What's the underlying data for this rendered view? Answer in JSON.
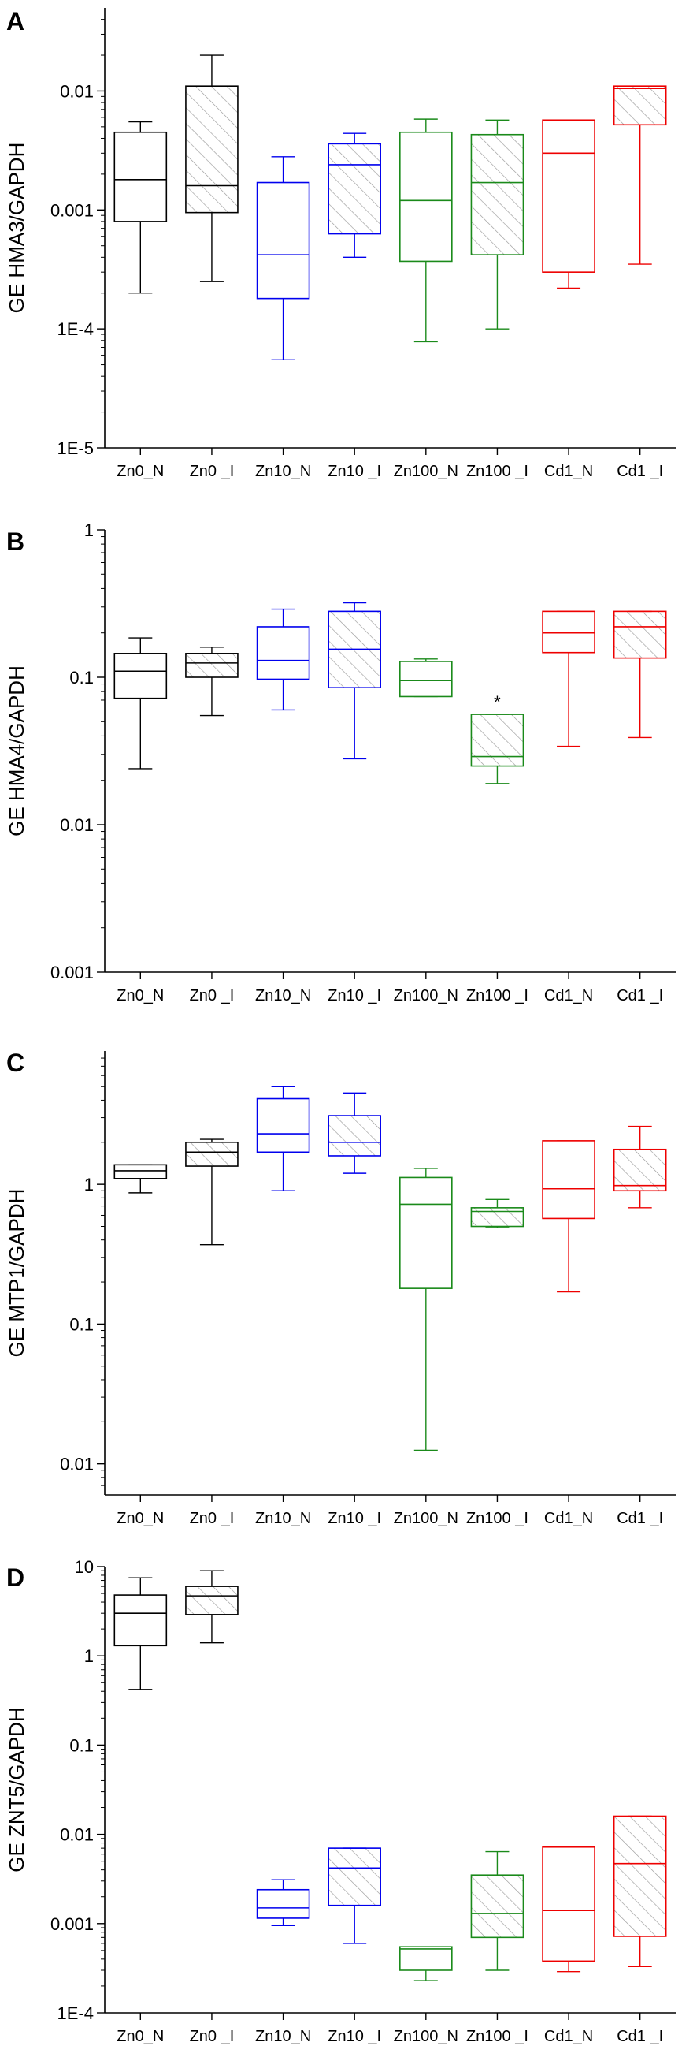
{
  "chart_data": [
    {
      "type": "box",
      "panel_label": "A",
      "ylabel": "GE HMA3/GAPDH",
      "yscale": "log",
      "ylim": [
        1e-05,
        0.05
      ],
      "yticks": [
        1e-05,
        0.0001,
        0.001,
        0.01
      ],
      "ytick_labels": [
        "1E-5",
        "1E-4",
        "0.001",
        "0.01"
      ],
      "categories": [
        "Zn0_N",
        "Zn0 _I",
        "Zn10_N",
        "Zn10 _I",
        "Zn100_N",
        "Zn100 _I",
        "Cd1_N",
        "Cd1 _I"
      ],
      "boxes": [
        {
          "min": 0.0002,
          "q1": 0.0008,
          "median": 0.0018,
          "q3": 0.0045,
          "max": 0.0055
        },
        {
          "min": 0.00025,
          "q1": 0.00095,
          "median": 0.0016,
          "q3": 0.011,
          "max": 0.02
        },
        {
          "min": 5.5e-05,
          "q1": 0.00018,
          "median": 0.00042,
          "q3": 0.0017,
          "max": 0.0028
        },
        {
          "min": 0.0004,
          "q1": 0.00063,
          "median": 0.0024,
          "q3": 0.0036,
          "max": 0.0044
        },
        {
          "min": 7.8e-05,
          "q1": 0.00037,
          "median": 0.0012,
          "q3": 0.0045,
          "max": 0.0058
        },
        {
          "min": 0.0001,
          "q1": 0.00042,
          "median": 0.0017,
          "q3": 0.0043,
          "max": 0.0057
        },
        {
          "min": 0.00022,
          "q1": 0.0003,
          "median": 0.003,
          "q3": 0.0057,
          "max": 0.0057
        },
        {
          "min": 0.00035,
          "q1": 0.0052,
          "median": 0.0105,
          "q3": 0.011,
          "max": 0.011
        }
      ],
      "annotations": []
    },
    {
      "type": "box",
      "panel_label": "B",
      "ylabel": "GE HMA4/GAPDH",
      "yscale": "log",
      "ylim": [
        0.001,
        1
      ],
      "yticks": [
        0.001,
        0.01,
        0.1,
        1
      ],
      "ytick_labels": [
        "0.001",
        "0.01",
        "0.1",
        "1"
      ],
      "categories": [
        "Zn0_N",
        "Zn0 _I",
        "Zn10_N",
        "Zn10 _I",
        "Zn100_N",
        "Zn100 _I",
        "Cd1_N",
        "Cd1 _I"
      ],
      "boxes": [
        {
          "min": 0.024,
          "q1": 0.072,
          "median": 0.11,
          "q3": 0.145,
          "max": 0.185
        },
        {
          "min": 0.055,
          "q1": 0.1,
          "median": 0.125,
          "q3": 0.145,
          "max": 0.16
        },
        {
          "min": 0.06,
          "q1": 0.097,
          "median": 0.13,
          "q3": 0.22,
          "max": 0.29
        },
        {
          "min": 0.028,
          "q1": 0.085,
          "median": 0.155,
          "q3": 0.28,
          "max": 0.32
        },
        {
          "min": 0.074,
          "q1": 0.074,
          "median": 0.095,
          "q3": 0.128,
          "max": 0.133
        },
        {
          "min": 0.019,
          "q1": 0.025,
          "median": 0.029,
          "q3": 0.056,
          "max": 0.056
        },
        {
          "min": 0.034,
          "q1": 0.147,
          "median": 0.2,
          "q3": 0.28,
          "max": 0.28
        },
        {
          "min": 0.039,
          "q1": 0.135,
          "median": 0.22,
          "q3": 0.28,
          "max": 0.28
        }
      ],
      "annotations": [
        {
          "category_index": 5,
          "text": "*",
          "y": 0.07
        }
      ]
    },
    {
      "type": "box",
      "panel_label": "C",
      "ylabel": "GE MTP1/GAPDH",
      "yscale": "log",
      "ylim": [
        0.006,
        9
      ],
      "yticks": [
        0.01,
        0.1,
        1
      ],
      "ytick_labels": [
        "0.01",
        "0.1",
        "1"
      ],
      "categories": [
        "Zn0_N",
        "Zn0 _I",
        "Zn10_N",
        "Zn10 _I",
        "Zn100_N",
        "Zn100 _I",
        "Cd1_N",
        "Cd1 _I"
      ],
      "boxes": [
        {
          "min": 0.87,
          "q1": 1.1,
          "median": 1.25,
          "q3": 1.38,
          "max": 1.38
        },
        {
          "min": 0.37,
          "q1": 1.35,
          "median": 1.7,
          "q3": 2.0,
          "max": 2.1
        },
        {
          "min": 0.9,
          "q1": 1.7,
          "median": 2.3,
          "q3": 4.1,
          "max": 5.0
        },
        {
          "min": 1.2,
          "q1": 1.6,
          "median": 2.0,
          "q3": 3.1,
          "max": 4.5
        },
        {
          "min": 0.0125,
          "q1": 0.18,
          "median": 0.72,
          "q3": 1.12,
          "max": 1.3
        },
        {
          "min": 0.49,
          "q1": 0.5,
          "median": 0.64,
          "q3": 0.68,
          "max": 0.78
        },
        {
          "min": 0.17,
          "q1": 0.57,
          "median": 0.93,
          "q3": 2.05,
          "max": 2.05
        },
        {
          "min": 0.68,
          "q1": 0.9,
          "median": 0.98,
          "q3": 1.78,
          "max": 2.6
        }
      ],
      "annotations": []
    },
    {
      "type": "box",
      "panel_label": "D",
      "ylabel": "GE ZNT5/GAPDH",
      "yscale": "log",
      "ylim": [
        0.0001,
        10
      ],
      "yticks": [
        0.0001,
        0.001,
        0.01,
        0.1,
        1,
        10
      ],
      "ytick_labels": [
        "1E-4",
        "0.001",
        "0.01",
        "0.1",
        "1",
        "10"
      ],
      "categories": [
        "Zn0_N",
        "Zn0 _I",
        "Zn10_N",
        "Zn10 _I",
        "Zn100_N",
        "Zn100 _I",
        "Cd1_N",
        "Cd1 _I"
      ],
      "boxes": [
        {
          "min": 0.42,
          "q1": 1.3,
          "median": 3.0,
          "q3": 4.8,
          "max": 7.5
        },
        {
          "min": 1.4,
          "q1": 2.9,
          "median": 4.7,
          "q3": 6.0,
          "max": 9.0
        },
        {
          "min": 0.00095,
          "q1": 0.00115,
          "median": 0.0015,
          "q3": 0.0024,
          "max": 0.0031
        },
        {
          "min": 0.0006,
          "q1": 0.0016,
          "median": 0.0042,
          "q3": 0.007,
          "max": 0.007
        },
        {
          "min": 0.00023,
          "q1": 0.0003,
          "median": 0.00052,
          "q3": 0.00055,
          "max": 0.00055
        },
        {
          "min": 0.0003,
          "q1": 0.0007,
          "median": 0.0013,
          "q3": 0.0035,
          "max": 0.0064
        },
        {
          "min": 0.00029,
          "q1": 0.00038,
          "median": 0.0014,
          "q3": 0.0072,
          "max": 0.0072
        },
        {
          "min": 0.00033,
          "q1": 0.00072,
          "median": 0.0047,
          "q3": 0.016,
          "max": 0.016
        }
      ],
      "annotations": []
    }
  ],
  "series_styles": [
    {
      "color": "#000000",
      "hatched": false
    },
    {
      "color": "#000000",
      "hatched": true
    },
    {
      "color": "#0000ee",
      "hatched": false
    },
    {
      "color": "#0000ee",
      "hatched": true
    },
    {
      "color": "#1a8a1a",
      "hatched": false
    },
    {
      "color": "#1a8a1a",
      "hatched": true
    },
    {
      "color": "#ee0000",
      "hatched": false
    },
    {
      "color": "#ee0000",
      "hatched": true
    }
  ]
}
